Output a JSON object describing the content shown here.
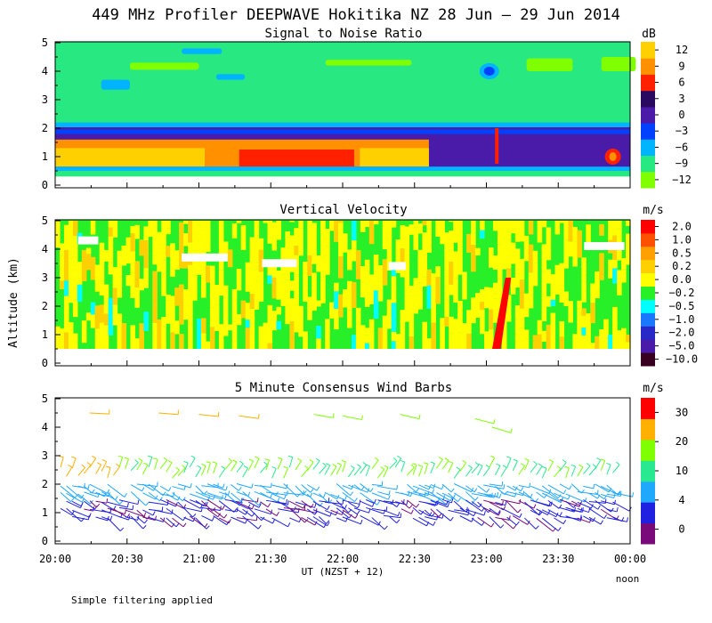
{
  "title": "449 MHz Profiler DEEPWAVE Hokitika NZ 28 Jun – 29 Jun 2014",
  "ylabel": "Altitude (km)",
  "xlabel": "UT  (NZST + 12)",
  "x_end_note": "noon",
  "footer_note": "Simple filtering applied",
  "x_ticks": [
    "20:00",
    "20:30",
    "21:00",
    "21:30",
    "22:00",
    "22:30",
    "23:00",
    "23:30",
    "00:00"
  ],
  "y_ticks": [
    "0",
    "1",
    "2",
    "3",
    "4",
    "5"
  ],
  "colors": {
    "snr": [
      "#80ff00",
      "#28e882",
      "#00b4ff",
      "#0040ff",
      "#4a1aa8",
      "#2a0a60",
      "#ff2000",
      "#ff9000",
      "#ffd000"
    ],
    "vv": [
      "#380020",
      "#4a1aa8",
      "#2828c8",
      "#1a78ff",
      "#00ffff",
      "#28f028",
      "#ffff00",
      "#ffd000",
      "#ffa000",
      "#ff5000",
      "#ff0000"
    ],
    "wind": [
      "#7a0a7a",
      "#2020e0",
      "#20a8ff",
      "#28e890",
      "#80ff00",
      "#ffb000",
      "#ff0000"
    ]
  },
  "chart_data": [
    {
      "type": "heatmap",
      "title": "Signal to Noise Ratio",
      "unit": "dB",
      "colorbar_labels": [
        "12",
        "9",
        "6",
        "3",
        "0",
        "−3",
        "−6",
        "−9",
        "−12"
      ],
      "x_range": [
        "20:00",
        "00:00"
      ],
      "ylim": [
        0,
        5
      ],
      "layers": [
        {
          "altitude_km": [
            0.3,
            0.6
          ],
          "snr_db": -7
        },
        {
          "altitude_km": [
            0.6,
            1.6
          ],
          "snr_db": 11
        },
        {
          "altitude_km": [
            1.6,
            2.0
          ],
          "snr_db": 1
        },
        {
          "altitude_km": [
            2.0,
            5.0
          ],
          "snr_db": -9
        }
      ]
    },
    {
      "type": "heatmap",
      "title": "Vertical Velocity",
      "unit": "m/s",
      "colorbar_labels": [
        "2.0",
        "1.0",
        "0.5",
        "0.2",
        "0.0",
        "−0.2",
        "−0.5",
        "−1.0",
        "−2.0",
        "−5.0",
        "−10.0"
      ],
      "x_range": [
        "20:00",
        "00:00"
      ],
      "ylim": [
        0,
        5
      ],
      "altitude_range_km": [
        0.5,
        5.0
      ],
      "typical_range_ms": [
        -0.5,
        0.2
      ]
    },
    {
      "type": "scatter",
      "title": "5 Minute Consensus Wind Barbs",
      "unit": "m/s",
      "colorbar_labels": [
        "30",
        "20",
        "10",
        "4",
        "0"
      ],
      "x_range": [
        "20:00",
        "00:00"
      ],
      "ylim": [
        0,
        5
      ],
      "levels": [
        {
          "altitude_km": [
            0.7,
            2.0
          ],
          "speed_ms": [
            0,
            5
          ]
        },
        {
          "altitude_km": [
            2.0,
            2.7
          ],
          "speed_ms": [
            8,
            15
          ]
        },
        {
          "altitude_km": [
            4.2,
            4.6
          ],
          "speed_ms": [
            12,
            20
          ]
        }
      ]
    }
  ]
}
